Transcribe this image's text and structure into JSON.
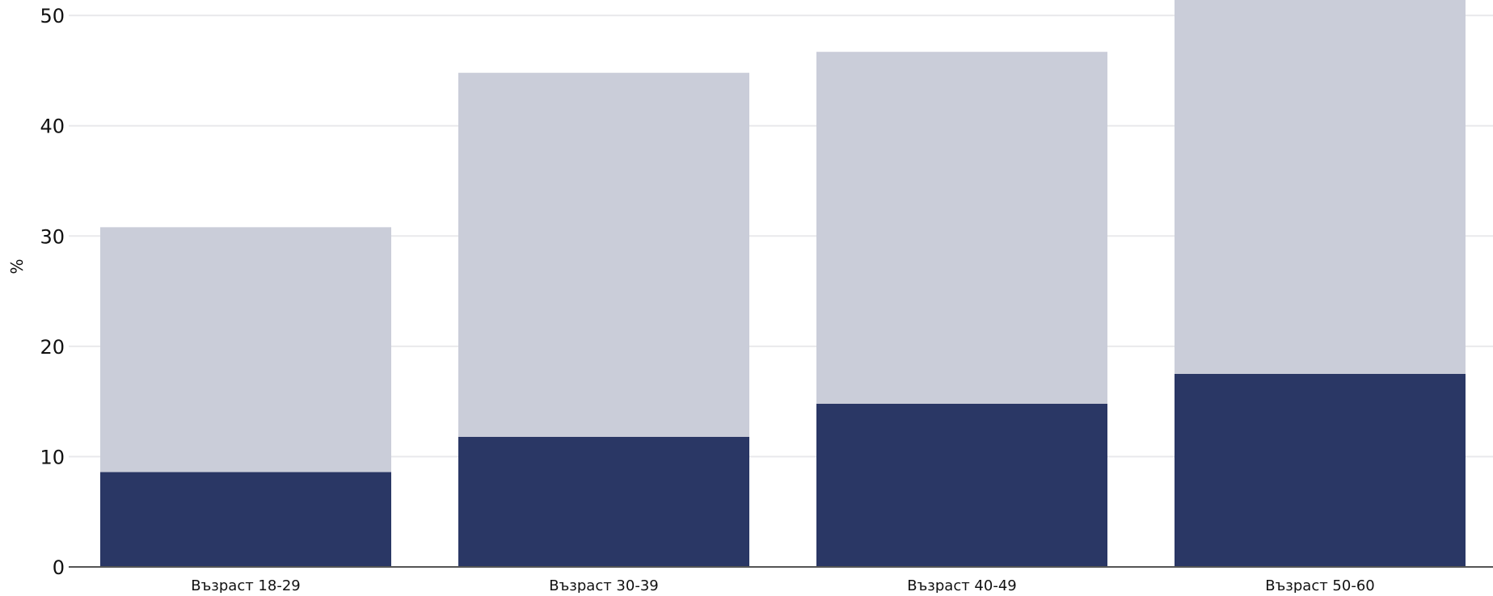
{
  "chart_data": {
    "type": "bar",
    "stacked": true,
    "title": "",
    "xlabel": "",
    "ylabel": "%",
    "ylim": [
      0,
      51.4
    ],
    "yticks": [
      0,
      10,
      20,
      30,
      40,
      50
    ],
    "ytick_labels": [
      "0",
      "10",
      "20",
      "30",
      "40",
      "50"
    ],
    "grid": true,
    "legend": "none",
    "categories": [
      "Възраст 18-29",
      "Възраст 30-39",
      "Възраст 40-49",
      "Възраст 50-60"
    ],
    "series": [
      {
        "values": [
          8.6,
          11.8,
          14.8,
          17.5
        ],
        "color": "#2a3765"
      },
      {
        "values": [
          22.2,
          33.0,
          31.9,
          34.9
        ],
        "color": "#cacdd9"
      }
    ],
    "colors": {
      "grid": "#e9e9ec",
      "axis": "#555555"
    }
  }
}
